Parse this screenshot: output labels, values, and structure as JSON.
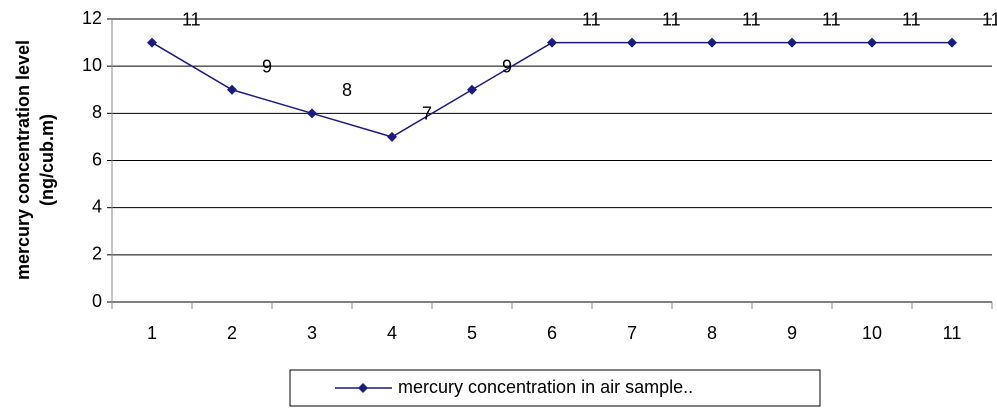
{
  "chart_data": {
    "type": "line",
    "y_label": [
      "mercury concentration level",
      "(ng/cub.m)"
    ],
    "categories": [
      "1",
      "2",
      "3",
      "4",
      "5",
      "6",
      "7",
      "8",
      "9",
      "10",
      "11"
    ],
    "series": [
      {
        "name": "mercury concentration in air sample..",
        "color": "#1a1a80",
        "values": [
          11,
          9,
          8,
          7,
          9,
          11,
          11,
          11,
          11,
          11,
          11
        ]
      }
    ],
    "ylim": [
      0,
      12
    ],
    "yticks": [
      0,
      2,
      4,
      6,
      8,
      10,
      12
    ],
    "grid": true,
    "legend": "bottom"
  }
}
